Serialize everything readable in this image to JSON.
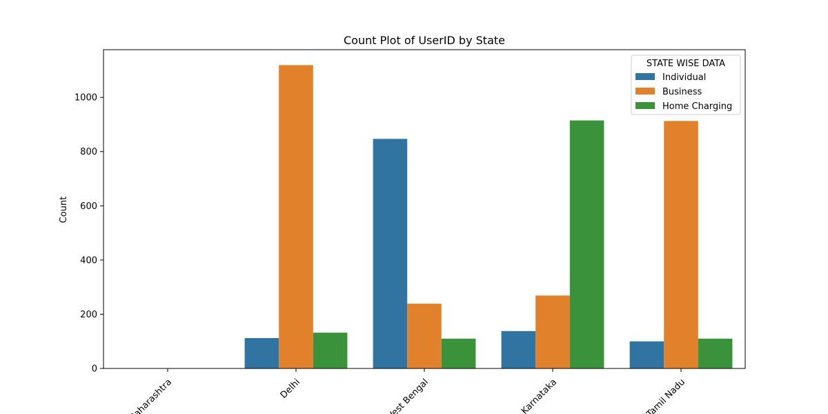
{
  "chart_data": {
    "type": "bar",
    "title": "Count Plot of UserID by State",
    "xlabel": "",
    "ylabel": "Count",
    "categories": [
      "Maharashtra",
      "Delhi",
      "West Bengal",
      "Karnataka",
      "Tamil Nadu"
    ],
    "series": [
      {
        "name": "Individual",
        "color": "#3274a1",
        "values": [
          0,
          112,
          847,
          138,
          100
        ]
      },
      {
        "name": "Business",
        "color": "#e1812c",
        "values": [
          0,
          1119,
          239,
          269,
          913
        ]
      },
      {
        "name": "Home Charging",
        "color": "#3a923a",
        "values": [
          0,
          132,
          110,
          915,
          110
        ]
      }
    ],
    "ylim": [
      0,
      1176
    ],
    "yticks": [
      0,
      200,
      400,
      600,
      800,
      1000
    ],
    "legend": {
      "title": "STATE WISE DATA",
      "placement": "top-right"
    },
    "grid": false
  }
}
